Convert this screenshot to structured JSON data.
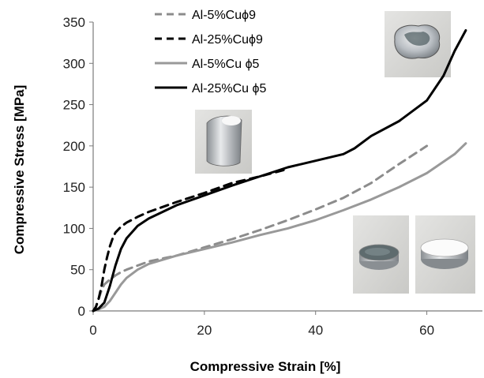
{
  "chart_data": {
    "type": "line",
    "xlabel": "Compressive  Strain [%]",
    "ylabel": "Compressive Stress [MPa]",
    "xlim": [
      0,
      70
    ],
    "ylim": [
      0,
      350
    ],
    "xticks": [
      0,
      20,
      40,
      60
    ],
    "yticks": [
      0,
      50,
      100,
      150,
      200,
      250,
      300,
      350
    ],
    "grid": false,
    "legend_position": "top-left",
    "series": [
      {
        "name": "Al-5%Cuϕ9",
        "color": "#8c8c8c",
        "dash": "dashed",
        "x": [
          0,
          0.5,
          1,
          1.5,
          2,
          3,
          4,
          5,
          6,
          8,
          10,
          15,
          20,
          25,
          30,
          35,
          40,
          45,
          50,
          55,
          60
        ],
        "y": [
          0,
          5,
          15,
          25,
          32,
          38,
          43,
          47,
          50,
          55,
          60,
          67,
          77,
          87,
          98,
          110,
          123,
          137,
          155,
          178,
          200
        ]
      },
      {
        "name": "Al-25%Cuϕ9",
        "color": "#000000",
        "dash": "dashed",
        "x": [
          0,
          0.5,
          1,
          1.5,
          2,
          2.5,
          3,
          3.5,
          4,
          5,
          6,
          8,
          10,
          15,
          20,
          25,
          30,
          35
        ],
        "y": [
          0,
          5,
          15,
          30,
          50,
          65,
          78,
          88,
          95,
          102,
          107,
          114,
          120,
          132,
          143,
          155,
          163,
          172
        ]
      },
      {
        "name": "Al-5%Cu ϕ5",
        "color": "#999999",
        "dash": "solid",
        "x": [
          0,
          1,
          2,
          3,
          4,
          5,
          6,
          8,
          10,
          15,
          20,
          25,
          30,
          35,
          40,
          45,
          50,
          55,
          60,
          65,
          67
        ],
        "y": [
          0,
          2,
          5,
          12,
          22,
          32,
          40,
          50,
          57,
          67,
          75,
          83,
          92,
          100,
          110,
          122,
          135,
          150,
          167,
          190,
          203
        ]
      },
      {
        "name": "Al-25%Cu ϕ5",
        "color": "#000000",
        "dash": "solid",
        "x": [
          0,
          1,
          2,
          3,
          4,
          5,
          6,
          8,
          10,
          15,
          20,
          25,
          30,
          35,
          40,
          45,
          47,
          50,
          55,
          60,
          63,
          65,
          67
        ],
        "y": [
          0,
          3,
          10,
          30,
          55,
          75,
          88,
          103,
          112,
          128,
          140,
          152,
          163,
          174,
          182,
          190,
          197,
          212,
          230,
          255,
          285,
          315,
          340
        ]
      }
    ]
  },
  "photos": [
    {
      "name": "sample-photo-crushed",
      "description": "crushed sample"
    },
    {
      "name": "sample-photo-deformed",
      "description": "deformed cylinder"
    },
    {
      "name": "sample-photo-flat-a",
      "description": "flattened disc"
    },
    {
      "name": "sample-photo-flat-b",
      "description": "flattened disc"
    }
  ]
}
